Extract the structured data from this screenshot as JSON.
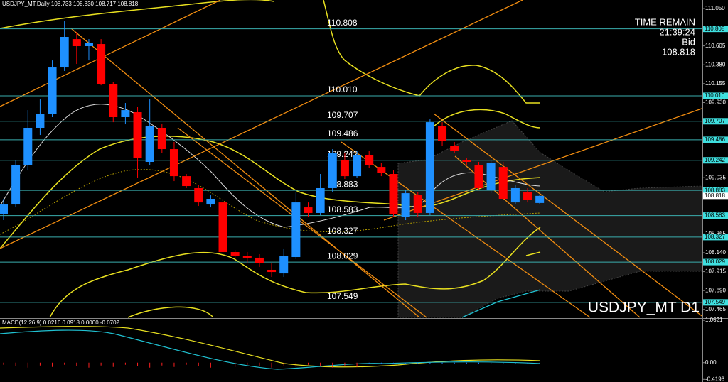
{
  "header": {
    "symbol_info": "USDJPY_MT,Daily  108.733 108.830 108.717 108.818"
  },
  "info": {
    "time_remain_label": "TIME REMAIN",
    "time": "21:39:24",
    "bid_label": "Bid",
    "bid": "108.818"
  },
  "chart_data": {
    "type": "candlestick",
    "title": "USDJPY_MT D1",
    "open": [
      108.597,
      108.715,
      109.189,
      109.629,
      109.798,
      110.348,
      110.686,
      110.602,
      110.627,
      110.153,
      109.756,
      109.815,
      109.223,
      109.629,
      109.375,
      109.053,
      108.91,
      108.715,
      108.74,
      108.148,
      108.106,
      108.081,
      107.937,
      107.894,
      108.089,
      108.681,
      108.614,
      108.91,
      109.248,
      109.053,
      109.307,
      109.163,
      109.079,
      108.571,
      108.825,
      108.614,
      109.646,
      109.417,
      109.24,
      109.189,
      108.884,
      109.163,
      108.74,
      108.867,
      108.733
    ],
    "high": [
      108.783,
      109.248,
      109.84,
      109.967,
      110.432,
      110.898,
      110.771,
      110.686,
      110.686,
      110.179,
      109.925,
      109.883,
      109.967,
      109.671,
      109.46,
      109.079,
      108.952,
      108.825,
      108.766,
      108.174,
      108.148,
      108.123,
      108.021,
      108.191,
      108.867,
      108.74,
      109.079,
      109.375,
      109.333,
      109.358,
      109.358,
      109.206,
      109.121,
      108.884,
      108.867,
      109.73,
      109.696,
      109.46,
      109.273,
      109.223,
      109.248,
      109.223,
      108.952,
      108.91,
      108.83
    ],
    "low": [
      108.529,
      108.681,
      109.121,
      109.544,
      109.756,
      110.306,
      110.39,
      110.432,
      110.136,
      109.696,
      109.671,
      109.037,
      109.189,
      109.333,
      108.994,
      108.91,
      108.698,
      108.681,
      108.106,
      108.064,
      108.021,
      107.971,
      107.852,
      107.852,
      108.064,
      108.571,
      108.588,
      108.867,
      109.02,
      109.037,
      109.155,
      109.053,
      108.571,
      108.529,
      108.571,
      108.588,
      109.417,
      109.333,
      109.189,
      108.884,
      108.85,
      108.766,
      108.715,
      108.74,
      108.717
    ],
    "close": [
      108.715,
      109.189,
      109.629,
      109.798,
      110.348,
      110.712,
      110.602,
      110.644,
      110.153,
      109.756,
      109.84,
      109.273,
      109.646,
      109.375,
      109.053,
      108.935,
      108.74,
      108.783,
      108.148,
      108.106,
      108.081,
      108.021,
      107.911,
      108.106,
      108.74,
      108.614,
      108.91,
      109.333,
      109.053,
      109.307,
      109.189,
      109.096,
      108.597,
      108.85,
      108.614,
      109.696,
      109.476,
      109.358,
      109.223,
      108.91,
      109.206,
      108.783,
      108.91,
      108.766,
      108.818
    ],
    "up_color": "#1e90ff",
    "down_color": "#ff0000",
    "ylim": [
      107.37,
      111.152
    ],
    "yticks": [
      {
        "value": 111.05,
        "label": "111.050"
      },
      110.605,
      {
        "value": 110.38,
        "label": "110.380"
      },
      {
        "value": 110.155,
        "label": "110.155"
      },
      {
        "value": 109.93,
        "label": "109.930"
      },
      109.035,
      108.365,
      {
        "value": 108.14,
        "label": "108.140"
      },
      107.915,
      {
        "value": 107.69,
        "label": "107.690"
      },
      107.465
    ],
    "levels": [
      110.808,
      {
        "value": 110.01,
        "label": "110.010"
      },
      109.707,
      109.486,
      109.242,
      108.883,
      108.583,
      108.327,
      108.029,
      107.549
    ],
    "level_color": "#3aaeae",
    "bid": 108.818
  },
  "macd": {
    "label": "MACD(12,26,9) 0.0216 0.0918 0.0000 -0.0702",
    "ylim": [
      -0.45,
      1.1
    ],
    "yticks": [
      1.0621,
      {
        "value": 0,
        "label": "0.00"
      },
      -0.4193
    ]
  }
}
